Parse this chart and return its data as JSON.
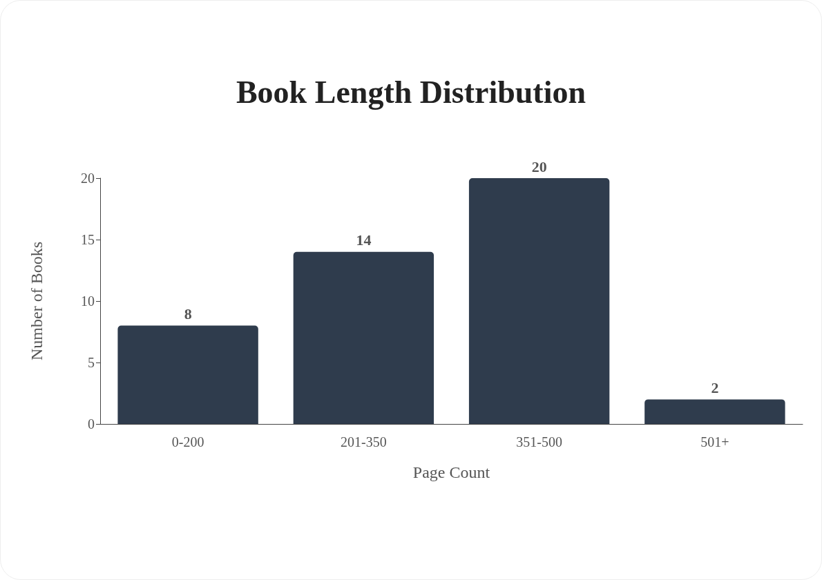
{
  "chart_data": {
    "type": "bar",
    "title": "Book Length Distribution",
    "xlabel": "Page Count",
    "ylabel": "Number of Books",
    "categories": [
      "0-200",
      "201-350",
      "351-500",
      "501+"
    ],
    "values": [
      8,
      14,
      20,
      2
    ],
    "color": "#2f3c4d",
    "ylim": [
      0,
      20
    ],
    "yticks": [
      0,
      5,
      10,
      15,
      20
    ],
    "grid": false,
    "data_labels": true
  }
}
